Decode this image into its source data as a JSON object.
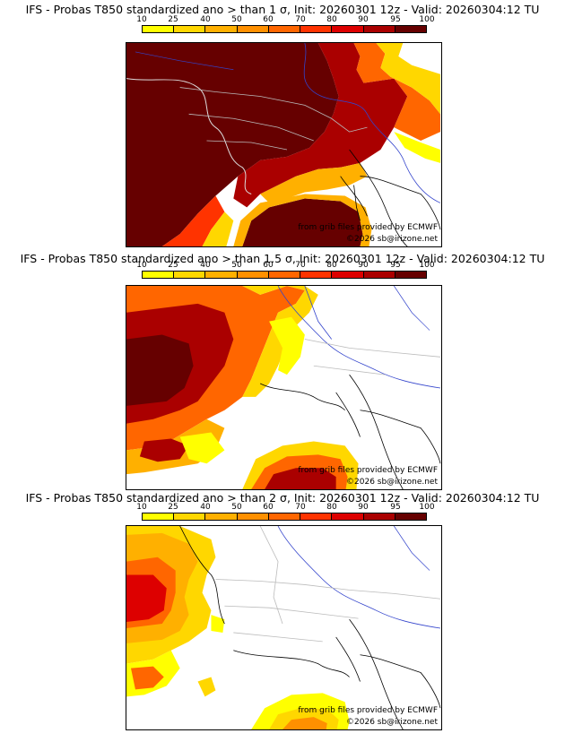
{
  "colorbar": {
    "ticks": [
      "10",
      "25",
      "40",
      "50",
      "60",
      "70",
      "80",
      "90",
      "95",
      "100"
    ],
    "colors": [
      "#ffff00",
      "#ffd700",
      "#ffb000",
      "#ff9000",
      "#ff6600",
      "#ff3300",
      "#dd0000",
      "#aa0000",
      "#660000"
    ]
  },
  "panels": [
    {
      "title": "IFS - Probas T850  standardized ano > than 1 σ, Init: 20260301 12z - Valid: 20260304:12 TU",
      "credit_source": "from grib files provided by ECMWF",
      "credit_copyright": "©2026 sb@irizone.net"
    },
    {
      "title": "IFS - Probas T850  standardized ano > than 1.5 σ, Init: 20260301 12z - Valid: 20260304:12 TU",
      "credit_source": "from grib files provided by ECMWF",
      "credit_copyright": "©2026 sb@irizone.net"
    },
    {
      "title": "IFS - Probas T850  standardized ano > than 2 σ, Init: 20260301 12z - Valid: 20260304:12 TU",
      "credit_source": "from grib files provided by ECMWF",
      "credit_copyright": "©2026 sb@irizone.net"
    }
  ]
}
